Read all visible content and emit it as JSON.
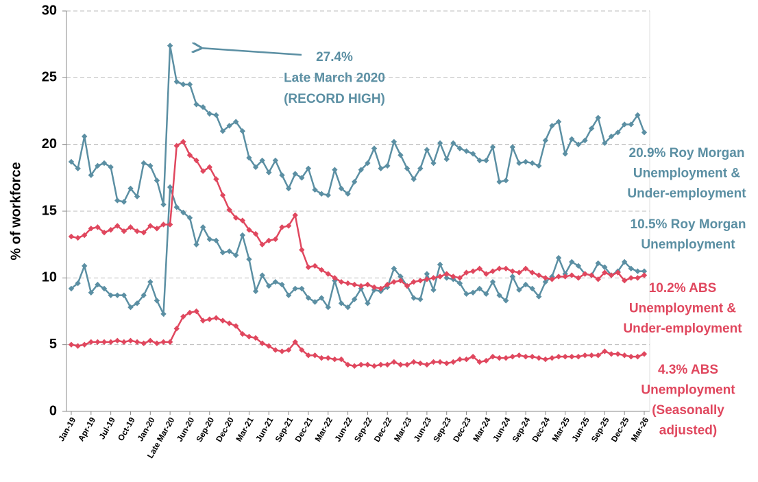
{
  "chart_data": {
    "type": "line",
    "y_label": "% of workforce",
    "ylim": [
      0,
      30
    ],
    "yticks": [
      0,
      5,
      10,
      15,
      20,
      25,
      30
    ],
    "grid": true,
    "categories": [
      "Jan-19",
      null,
      null,
      "Apr-19",
      null,
      null,
      "Jul-19",
      null,
      null,
      "Oct-19",
      null,
      null,
      "Jan-20",
      null,
      null,
      "Late Mar-20",
      null,
      null,
      "Jun-20",
      null,
      null,
      "Sep-20",
      null,
      null,
      "Dec-20",
      null,
      null,
      "Mar-21",
      null,
      null,
      "Jun-21",
      null,
      null,
      "Sep-21",
      null,
      null,
      "Dec-21",
      null,
      null,
      "Mar-22",
      null,
      null,
      "Jun-22",
      null,
      null,
      "Sep-22",
      null,
      null,
      "Dec-22",
      null,
      null,
      "Mar-23",
      null,
      null,
      "Jun-23",
      null,
      null,
      "Sep-23",
      null,
      null,
      "Dec-23",
      null,
      null,
      "Mar-24",
      null,
      null,
      "Jun-24",
      null,
      null,
      "Sep-24",
      null,
      null,
      "Dec-24",
      null,
      null,
      "Mar-25",
      null,
      null,
      "Jun-25",
      null,
      null,
      "Sep-25",
      null,
      null,
      "Dec-25",
      null,
      null,
      "Mar-26"
    ],
    "series": [
      {
        "label": [
          "20.9% Roy Morgan",
          "Unemployment &",
          "Under-employment"
        ],
        "color": "#5b8fa3",
        "values": [
          18.7,
          18.2,
          20.6,
          17.7,
          18.4,
          18.6,
          18.3,
          15.8,
          15.7,
          16.7,
          16.1,
          18.6,
          18.4,
          17.3,
          15.5,
          27.4,
          24.7,
          24.5,
          24.5,
          23.0,
          22.8,
          22.3,
          22.2,
          21.0,
          21.4,
          21.7,
          21.0,
          19.0,
          18.3,
          18.8,
          17.9,
          18.8,
          17.7,
          16.7,
          17.8,
          17.5,
          18.2,
          16.6,
          16.3,
          16.2,
          18.1,
          16.7,
          16.3,
          17.2,
          18.1,
          18.6,
          19.7,
          18.2,
          18.4,
          20.2,
          19.2,
          18.2,
          17.4,
          18.2,
          19.6,
          18.6,
          20.1,
          18.9,
          20.1,
          19.7,
          19.5,
          19.3,
          18.8,
          18.8,
          19.8,
          17.2,
          17.3,
          19.8,
          18.6,
          18.7,
          18.6,
          18.4,
          20.3,
          21.4,
          21.7,
          19.3,
          20.4,
          20.0,
          20.3,
          21.2,
          22.0,
          20.1,
          20.6,
          20.9,
          21.5,
          21.5,
          22.2,
          20.9
        ]
      },
      {
        "label": [
          "10.5% Roy Morgan",
          "Unemployment"
        ],
        "color": "#5b8fa3",
        "values": [
          9.2,
          9.6,
          10.9,
          8.9,
          9.5,
          9.2,
          8.7,
          8.7,
          8.7,
          7.8,
          8.1,
          8.7,
          9.7,
          8.3,
          7.3,
          16.8,
          15.3,
          14.9,
          14.5,
          12.5,
          13.8,
          12.9,
          12.8,
          11.9,
          12.0,
          11.7,
          13.2,
          11.4,
          9.0,
          10.2,
          9.4,
          9.7,
          9.5,
          8.7,
          9.2,
          9.2,
          8.5,
          8.2,
          8.5,
          7.8,
          9.8,
          8.1,
          7.8,
          8.4,
          9.2,
          8.1,
          9.1,
          9.0,
          9.3,
          10.7,
          10.1,
          9.4,
          8.5,
          8.4,
          10.3,
          9.1,
          11.0,
          10.0,
          9.9,
          9.6,
          8.8,
          8.9,
          9.2,
          8.8,
          9.7,
          8.7,
          8.3,
          10.1,
          9.1,
          9.5,
          9.2,
          8.6,
          9.7,
          10.1,
          11.5,
          10.3,
          11.2,
          10.9,
          10.3,
          10.2,
          11.1,
          10.8,
          10.2,
          10.5,
          11.2,
          10.7,
          10.5,
          10.5
        ]
      },
      {
        "label": [
          "10.2% ABS",
          "Unemployment &",
          "Under-employment"
        ],
        "color": "#e0475e",
        "values": [
          13.1,
          13.0,
          13.2,
          13.7,
          13.8,
          13.4,
          13.6,
          13.9,
          13.5,
          13.8,
          13.5,
          13.4,
          13.9,
          13.7,
          14.0,
          14.0,
          19.9,
          20.2,
          19.2,
          18.8,
          18.0,
          18.3,
          17.4,
          16.2,
          15.1,
          14.5,
          14.3,
          13.6,
          13.3,
          12.5,
          12.8,
          12.9,
          13.8,
          13.9,
          14.7,
          12.1,
          10.8,
          10.9,
          10.6,
          10.3,
          10.0,
          9.7,
          9.6,
          9.5,
          9.4,
          9.5,
          9.3,
          9.2,
          9.5,
          9.7,
          9.8,
          9.4,
          9.7,
          9.8,
          9.9,
          10.0,
          10.1,
          10.3,
          10.1,
          10.0,
          10.4,
          10.5,
          10.7,
          10.3,
          10.5,
          10.7,
          10.7,
          10.5,
          10.4,
          10.7,
          10.4,
          10.2,
          10.0,
          9.9,
          10.1,
          10.1,
          10.2,
          10.0,
          10.3,
          10.2,
          9.9,
          10.4,
          10.2,
          10.4,
          9.8,
          10.0,
          10.0,
          10.2
        ]
      },
      {
        "label": [
          "4.3% ABS",
          "Unemployment",
          "(Seasonally",
          "adjusted)"
        ],
        "color": "#e0475e",
        "values": [
          5.0,
          4.9,
          5.0,
          5.2,
          5.2,
          5.2,
          5.2,
          5.3,
          5.2,
          5.3,
          5.2,
          5.1,
          5.3,
          5.1,
          5.2,
          5.2,
          6.2,
          7.1,
          7.4,
          7.5,
          6.8,
          6.9,
          7.0,
          6.8,
          6.6,
          6.4,
          5.8,
          5.6,
          5.5,
          5.1,
          4.9,
          4.6,
          4.5,
          4.6,
          5.2,
          4.6,
          4.2,
          4.2,
          4.0,
          4.0,
          3.9,
          3.9,
          3.5,
          3.4,
          3.5,
          3.5,
          3.4,
          3.5,
          3.5,
          3.7,
          3.5,
          3.5,
          3.7,
          3.6,
          3.5,
          3.7,
          3.7,
          3.6,
          3.7,
          3.9,
          3.9,
          4.1,
          3.7,
          3.8,
          4.1,
          4.0,
          4.0,
          4.1,
          4.2,
          4.1,
          4.1,
          4.0,
          3.9,
          4.0,
          4.1,
          4.1,
          4.1,
          4.1,
          4.2,
          4.2,
          4.2,
          4.5,
          4.3,
          4.3,
          4.2,
          4.1,
          4.1,
          4.3
        ]
      }
    ],
    "annotation": [
      "27.4%",
      "Late March 2020",
      "(RECORD HIGH)"
    ]
  }
}
